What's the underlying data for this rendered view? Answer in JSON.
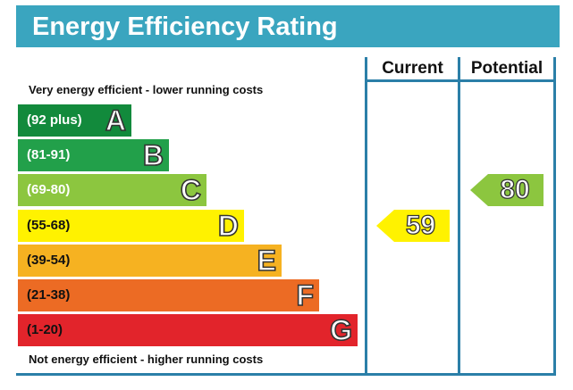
{
  "title": "Energy Efficiency Rating",
  "top_caption": "Very energy efficient - lower running costs",
  "bottom_caption": "Not energy efficient - higher running costs",
  "columns": {
    "current": "Current",
    "potential": "Potential"
  },
  "colors": {
    "header": "#3aa5bf",
    "frame": "#2b7fa8",
    "A": "#128a3c",
    "B": "#22a04a",
    "C": "#8cc63f",
    "D": "#fff200",
    "E": "#f6b221",
    "F": "#ec6b24",
    "G": "#e2242b"
  },
  "chart_data": {
    "type": "bar",
    "bands": [
      {
        "letter": "A",
        "range": "(92 plus)",
        "min": 92,
        "max": 100
      },
      {
        "letter": "B",
        "range": "(81-91)",
        "min": 81,
        "max": 91
      },
      {
        "letter": "C",
        "range": "(69-80)",
        "min": 69,
        "max": 80
      },
      {
        "letter": "D",
        "range": "(55-68)",
        "min": 55,
        "max": 68
      },
      {
        "letter": "E",
        "range": "(39-54)",
        "min": 39,
        "max": 54
      },
      {
        "letter": "F",
        "range": "(21-38)",
        "min": 21,
        "max": 38
      },
      {
        "letter": "G",
        "range": "(1-20)",
        "min": 1,
        "max": 20
      }
    ],
    "current": {
      "value": 59,
      "band": "D"
    },
    "potential": {
      "value": 80,
      "band": "C"
    }
  }
}
